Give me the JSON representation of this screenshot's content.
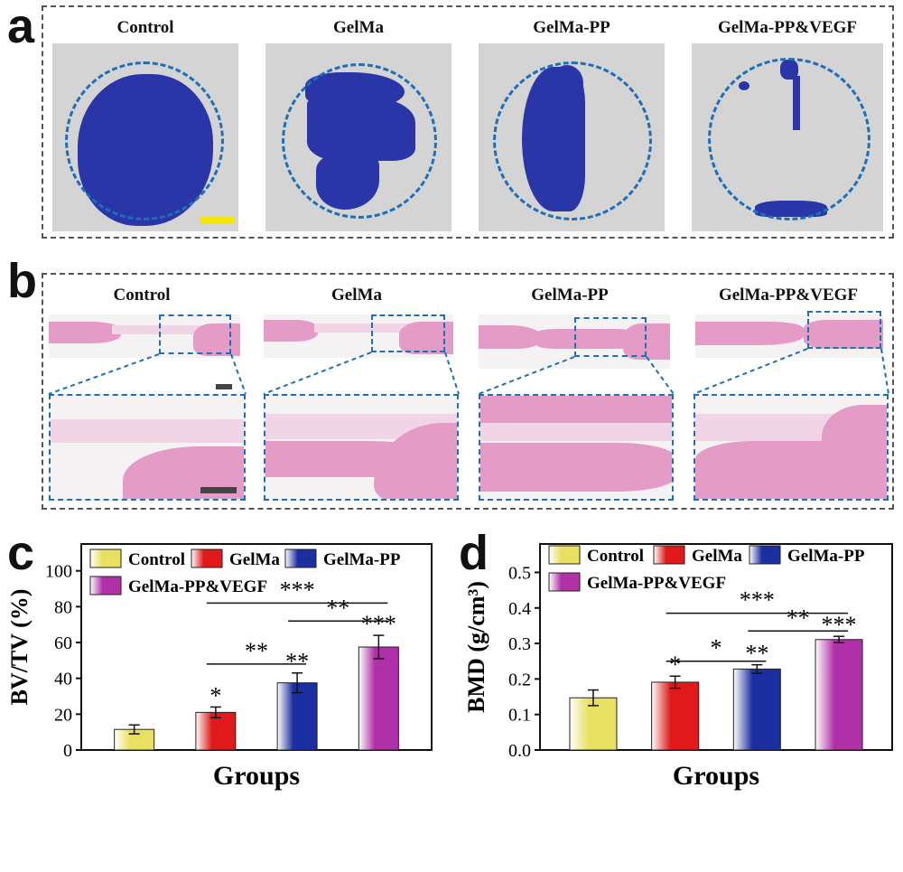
{
  "panels": {
    "a": {
      "letter": "a",
      "labels": [
        "Control",
        "GelMa",
        "GelMa-PP",
        "GelMa-PP&VEGF"
      ]
    },
    "b": {
      "letter": "b",
      "labels": [
        "Control",
        "GelMa",
        "GelMa-PP",
        "GelMa-PP&VEGF"
      ]
    }
  },
  "colors": {
    "control": "#e8e060",
    "gelma": "#e01a1a",
    "gelma_pp": "#1c2fa0",
    "gelma_pp_vegf": "#b030a8",
    "defect": "#2a35a8",
    "circle": "#1e6fb8"
  },
  "chart_data": [
    {
      "panel": "c",
      "type": "bar",
      "categories": [
        "Control",
        "GelMa",
        "GelMa-PP",
        "GelMa-PP&VEGF"
      ],
      "values": [
        11.5,
        21,
        37.5,
        57.5
      ],
      "errors": [
        2.5,
        3,
        5.5,
        6.5
      ],
      "marks": [
        "",
        "*",
        "**",
        "***"
      ],
      "ylabel": "BV/TV (%)",
      "xlabel": "Groups",
      "ylim": [
        0,
        115
      ],
      "yticks": [
        0,
        20,
        40,
        60,
        80,
        100
      ],
      "legend": [
        "Control",
        "GelMa",
        "GelMa-PP",
        "GelMa-PP&VEGF"
      ],
      "legend_position": "top",
      "comparisons": [
        {
          "from": 1,
          "to": 2,
          "label": "**",
          "y": 48
        },
        {
          "from": 2,
          "to": 3,
          "label": "**",
          "y": 72
        },
        {
          "from": 1,
          "to": 3,
          "label": "***",
          "y": 82
        }
      ]
    },
    {
      "panel": "d",
      "type": "bar",
      "categories": [
        "Control",
        "GelMa",
        "GelMa-PP",
        "GelMa-PP&VEGF"
      ],
      "values": [
        0.147,
        0.191,
        0.228,
        0.311
      ],
      "errors": [
        0.022,
        0.017,
        0.012,
        0.009
      ],
      "marks": [
        "",
        "*",
        "**",
        "***"
      ],
      "ylabel": "BMD",
      "ylabel_unit": "(g/cm³)",
      "xlabel": "Groups",
      "ylim": [
        0,
        0.58
      ],
      "yticks": [
        0.0,
        0.1,
        0.2,
        0.3,
        0.4,
        0.5
      ],
      "legend": [
        "Control",
        "GelMa",
        "GelMa-PP",
        "GelMa-PP&VEGF"
      ],
      "legend_position": "top",
      "comparisons": [
        {
          "from": 1,
          "to": 2,
          "label": "*",
          "y": 0.25
        },
        {
          "from": 2,
          "to": 3,
          "label": "**",
          "y": 0.335
        },
        {
          "from": 1,
          "to": 3,
          "label": "***",
          "y": 0.385
        }
      ]
    }
  ]
}
